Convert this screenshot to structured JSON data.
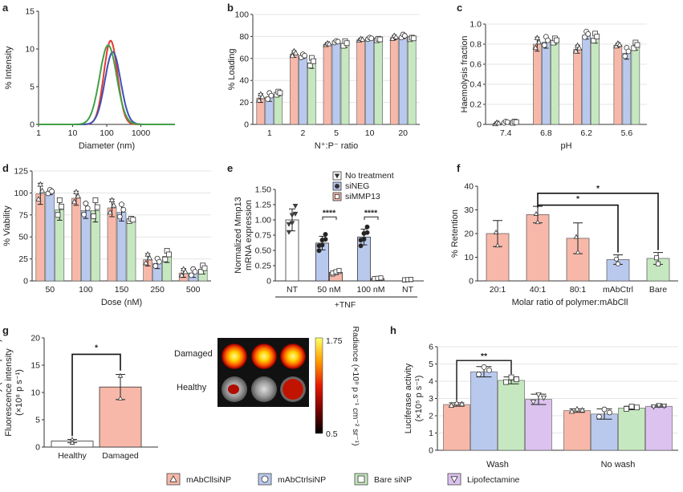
{
  "colors": {
    "pink": "#f7b8a9",
    "blue": "#b9c9ee",
    "green": "#c6e8c0",
    "purple": "#dcc2ef",
    "red": "#e53935",
    "dblue": "#3f51b5",
    "lgreen": "#43a047",
    "edge": "#555555"
  },
  "legend": {
    "items": [
      {
        "label": "mAbCllsiNP",
        "color": "#f7b8a9",
        "symbol": "triangle"
      },
      {
        "label": "mAbCtrlsiNP",
        "color": "#b9c9ee",
        "symbol": "circle"
      },
      {
        "label": "Bare siNP",
        "color": "#c6e8c0",
        "symbol": "square"
      },
      {
        "label": "Lipofectamine",
        "color": "#dcc2ef",
        "symbol": "inv-triangle"
      }
    ]
  },
  "chart_data": [
    {
      "panel": "a",
      "type": "line",
      "xlabel": "Diameter (nm)",
      "ylabel": "% Intensity",
      "xscale": "log",
      "xlim": [
        1,
        10000
      ],
      "ylim": [
        0,
        15
      ],
      "xticks": [
        "1",
        "10",
        "100",
        "1000"
      ],
      "yticks": [
        "0",
        "5",
        "10",
        "15"
      ],
      "series": [
        {
          "name": "mAbCllsiNP",
          "color": "red",
          "peak": 130,
          "height": 11.1,
          "width": 0.2
        },
        {
          "name": "mAbCtrlsiNP",
          "color": "dblue",
          "peak": 150,
          "height": 9.6,
          "width": 0.23
        },
        {
          "name": "Bare siNP",
          "color": "lgreen",
          "peak": 110,
          "height": 10.5,
          "width": 0.25
        }
      ]
    },
    {
      "panel": "b",
      "type": "bar",
      "xlabel": "N⁺:P⁻ ratio",
      "ylabel": "% Loading",
      "ylim": [
        0,
        100
      ],
      "yticks": [
        "0",
        "20",
        "40",
        "60",
        "80",
        "100"
      ],
      "categories": [
        "1",
        "2",
        "5",
        "10",
        "20"
      ],
      "series": [
        {
          "name": "mAbCllsiNP",
          "values": [
            24,
            64,
            73,
            77,
            79
          ],
          "errors": [
            4,
            3,
            1,
            1,
            2
          ]
        },
        {
          "name": "mAbCtrlsiNP",
          "values": [
            25,
            62,
            75,
            78,
            80
          ],
          "errors": [
            4,
            2,
            1,
            1,
            2
          ]
        },
        {
          "name": "Bare siNP",
          "values": [
            28,
            56,
            73,
            77,
            78
          ],
          "errors": [
            2,
            5,
            3,
            1,
            1
          ]
        }
      ]
    },
    {
      "panel": "c",
      "type": "bar",
      "xlabel": "pH",
      "ylabel": "Haemolysis fraction",
      "ylim": [
        0,
        1
      ],
      "yticks": [
        "0",
        "0.2",
        "0.4",
        "0.6",
        "0.8",
        "1.0"
      ],
      "categories": [
        "7.4",
        "6.8",
        "6.2",
        "5.6"
      ],
      "series": [
        {
          "name": "mAbCllsiNP",
          "values": [
            0.01,
            0.8,
            0.75,
            0.79
          ],
          "errors": [
            0.01,
            0.07,
            0.04,
            0.02
          ]
        },
        {
          "name": "mAbCtrlsiNP",
          "values": [
            0.02,
            0.82,
            0.89,
            0.71
          ],
          "errors": [
            0.01,
            0.06,
            0.04,
            0.06
          ]
        },
        {
          "name": "Bare siNP",
          "values": [
            0.02,
            0.83,
            0.86,
            0.78
          ],
          "errors": [
            0.01,
            0.03,
            0.05,
            0.04
          ]
        }
      ]
    },
    {
      "panel": "d",
      "type": "bar",
      "xlabel": "Dose (nM)",
      "ylabel": "% Viability",
      "ylim": [
        0,
        125
      ],
      "yticks": [
        "0",
        "25",
        "50",
        "75",
        "100",
        "125"
      ],
      "categories": [
        "50",
        "100",
        "150",
        "250",
        "500"
      ],
      "series": [
        {
          "name": "mAbCllsiNP",
          "values": [
            99,
            94,
            83,
            24,
            9
          ],
          "errors": [
            12,
            8,
            10,
            7,
            5
          ]
        },
        {
          "name": "mAbCtrlsiNP",
          "values": [
            101,
            80,
            78,
            20,
            9
          ],
          "errors": [
            3,
            9,
            10,
            6,
            5
          ]
        },
        {
          "name": "Bare siNP",
          "values": [
            81,
            80,
            69,
            28,
            13
          ],
          "errors": [
            12,
            13,
            2,
            7,
            5
          ]
        }
      ]
    },
    {
      "panel": "e",
      "type": "bar",
      "xlabel": "+TNF",
      "ylabel": "Normalized Mmp13 mRNA expression",
      "ylim": [
        0,
        1.5
      ],
      "yticks": [
        "0",
        "0.25",
        "0.50",
        "0.75",
        "1.00",
        "1.25",
        "1.50"
      ],
      "categories": [
        "NT",
        "50 nM",
        "100 nM",
        "NT"
      ],
      "series": [
        {
          "name": "No treatment",
          "values": [
            1.0,
            null,
            null,
            null
          ]
        },
        {
          "name": "siNEG",
          "values": [
            null,
            0.62,
            0.72,
            null
          ]
        },
        {
          "name": "siMMP13",
          "values": [
            null,
            0.14,
            0.04,
            0.02
          ]
        }
      ],
      "legend": [
        "No treatment",
        "siNEG",
        "siMMP13"
      ],
      "significance": [
        "****",
        "****"
      ]
    },
    {
      "panel": "f",
      "type": "bar",
      "xlabel": "Molar ratio of polymer:mAbCll",
      "ylabel": "% Retention",
      "ylim": [
        0,
        40
      ],
      "yticks": [
        "0",
        "10",
        "20",
        "30",
        "40"
      ],
      "categories": [
        "20:1",
        "40:1",
        "80:1",
        "mAbCtrl",
        "Bare"
      ],
      "values": [
        20,
        28,
        18,
        9,
        9.5
      ],
      "errors": [
        5.5,
        3.5,
        6.5,
        2,
        2.5
      ],
      "significance": [
        "*",
        "*"
      ]
    },
    {
      "panel": "g",
      "type": "bar",
      "ylabel": "Fluorescence intensity (×10⁸ p s⁻¹)",
      "ylim": [
        0,
        20
      ],
      "yticks": [
        "0",
        "5",
        "10",
        "15",
        "20"
      ],
      "categories": [
        "Healthy",
        "Damaged"
      ],
      "values": [
        1.1,
        11
      ],
      "errors": [
        0.3,
        2.3
      ],
      "significance": [
        "*"
      ],
      "image_labels": [
        "Damaged",
        "Healthy"
      ],
      "colorbar": {
        "label": "Radiance (×10⁸ p s⁻¹ cm⁻² sr⁻¹)",
        "max": "1.75",
        "min": "0.5"
      }
    },
    {
      "panel": "h",
      "type": "bar",
      "ylabel": "Luciferase activity (×10⁵ p s⁻¹)",
      "ylim": [
        0,
        6
      ],
      "yticks": [
        "0",
        "1",
        "2",
        "3",
        "4",
        "5",
        "6"
      ],
      "categories": [
        "Wash",
        "No wash"
      ],
      "series": [
        {
          "name": "mAbCllsiNP",
          "values": [
            2.65,
            2.3
          ],
          "errors": [
            0.1,
            0.1
          ]
        },
        {
          "name": "mAbCtrlsiNP",
          "values": [
            4.55,
            2.1
          ],
          "errors": [
            0.3,
            0.3
          ]
        },
        {
          "name": "Bare siNP",
          "values": [
            4.05,
            2.45
          ],
          "errors": [
            0.2,
            0.1
          ]
        },
        {
          "name": "Lipofectamine",
          "values": [
            2.95,
            2.55
          ],
          "errors": [
            0.3,
            0.05
          ]
        }
      ],
      "significance": [
        "**"
      ]
    }
  ]
}
